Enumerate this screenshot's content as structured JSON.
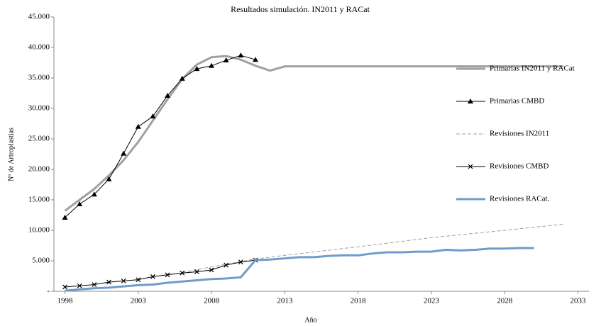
{
  "chart_data": {
    "type": "line",
    "title": "Resultados simulación. IN2011 y RACat",
    "x_label": "Año",
    "y_label": "Nº de Artroplastias",
    "xlim": [
      1997.25,
      2033.75
    ],
    "xticks": [
      1998,
      2003,
      2008,
      2013,
      2018,
      2023,
      2028,
      2033
    ],
    "ylim": [
      0,
      45000
    ],
    "yticks": [
      {
        "value": 0,
        "label": "-"
      },
      {
        "value": 5000,
        "label": "5.000"
      },
      {
        "value": 10000,
        "label": "10.000"
      },
      {
        "value": 15000,
        "label": "15.000"
      },
      {
        "value": 20000,
        "label": "20.000"
      },
      {
        "value": 25000,
        "label": "25.000"
      },
      {
        "value": 30000,
        "label": "30.000"
      },
      {
        "value": 35000,
        "label": "35.000"
      },
      {
        "value": 40000,
        "label": "40.000"
      },
      {
        "value": 45000,
        "label": "45.000"
      }
    ],
    "grid": false,
    "legend": "right",
    "series": [
      {
        "name": "Primarias IN2011 y RACat",
        "color": "#a0a0a0",
        "width": 3,
        "dashed": false,
        "marker": "none",
        "x": [
          1998,
          1999,
          2000,
          2001,
          2002,
          2003,
          2004,
          2005,
          2006,
          2007,
          2008,
          2009,
          2010,
          2011,
          2012,
          2013,
          2018,
          2023,
          2028,
          2032
        ],
        "values": [
          13200,
          15000,
          16800,
          19000,
          21500,
          24500,
          28000,
          31500,
          34800,
          37200,
          38400,
          38600,
          38000,
          37000,
          36200,
          36900,
          36900,
          36900,
          36900,
          36900
        ]
      },
      {
        "name": "Primarias CMBD",
        "color": "#000000",
        "width": 1,
        "dashed": false,
        "marker": "triangle",
        "x": [
          1998,
          1999,
          2000,
          2001,
          2002,
          2003,
          2004,
          2005,
          2006,
          2007,
          2008,
          2009,
          2010,
          2011
        ],
        "values": [
          12100,
          14300,
          15900,
          18400,
          22600,
          27000,
          28700,
          32100,
          34900,
          36500,
          37000,
          37900,
          38700,
          38000
        ]
      },
      {
        "name": "Revisiones IN2011",
        "color": "#a0a0a0",
        "width": 1,
        "dashed": true,
        "marker": "none",
        "x": [
          2006,
          2008,
          2011,
          2013,
          2018,
          2023,
          2028,
          2032
        ],
        "values": [
          3100,
          4000,
          5300,
          5900,
          7300,
          8800,
          10000,
          11000
        ]
      },
      {
        "name": "Revisiones CMBD",
        "color": "#000000",
        "width": 1,
        "dashed": false,
        "marker": "x",
        "x": [
          1998,
          1999,
          2000,
          2001,
          2002,
          2003,
          2004,
          2005,
          2006,
          2007,
          2008,
          2009,
          2010,
          2011
        ],
        "values": [
          700,
          900,
          1100,
          1500,
          1700,
          1900,
          2400,
          2700,
          3000,
          3200,
          3500,
          4300,
          4800,
          5100
        ]
      },
      {
        "name": "Revisiones RACat.",
        "color": "#6f9ccb",
        "width": 3,
        "dashed": false,
        "marker": "none",
        "x": [
          1998,
          1999,
          2000,
          2001,
          2002,
          2003,
          2004,
          2005,
          2006,
          2007,
          2008,
          2009,
          2010,
          2011,
          2012,
          2013,
          2014,
          2015,
          2016,
          2017,
          2018,
          2019,
          2020,
          2021,
          2022,
          2023,
          2024,
          2025,
          2026,
          2027,
          2028,
          2029,
          2030
        ],
        "values": [
          100,
          300,
          500,
          600,
          800,
          1000,
          1100,
          1400,
          1600,
          1800,
          2000,
          2100,
          2300,
          5100,
          5200,
          5400,
          5600,
          5600,
          5800,
          5900,
          5900,
          6200,
          6400,
          6400,
          6500,
          6500,
          6800,
          6700,
          6800,
          7000,
          7000,
          7100,
          7100
        ]
      }
    ]
  }
}
